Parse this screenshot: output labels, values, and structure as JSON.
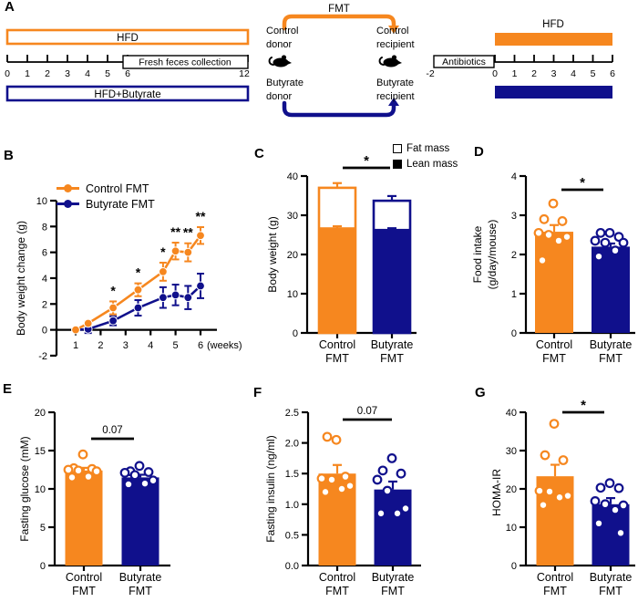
{
  "figure": {
    "panel_labels": {
      "A": "A",
      "B": "B",
      "C": "C",
      "D": "D",
      "E": "E",
      "F": "F",
      "G": "G"
    }
  },
  "colors": {
    "orange": "#F6871F",
    "navy": "#10108C",
    "black": "#000000"
  },
  "panel_a": {
    "left": {
      "hfd_label": "HFD",
      "butyrate_label": "HFD+Butyrate",
      "feces_label": "Fresh feces collection",
      "tick_labels": [
        "0",
        "1",
        "2",
        "3",
        "4",
        "5",
        "6"
      ],
      "end_label": "12"
    },
    "middle": {
      "fmt_label": "FMT",
      "control_donor": [
        "Control",
        "donor"
      ],
      "butyrate_donor": [
        "Butyrate",
        "donor"
      ],
      "control_recipient": [
        "Control",
        "recipient"
      ],
      "butyrate_recipient": [
        "Butyrate",
        "recipient"
      ]
    },
    "right": {
      "hfd_label": "HFD",
      "antibiotics_label": "Antibiotics",
      "pre_label": "-2",
      "tick_labels": [
        "0",
        "1",
        "2",
        "3",
        "4",
        "5",
        "6"
      ]
    }
  },
  "chart_data": [
    {
      "panel": "B",
      "type": "line",
      "ylabel": "Body weight change (g)",
      "xlabel": "(weeks)",
      "ylim": [
        -2,
        10
      ],
      "yticks": [
        "-2",
        "0",
        "2",
        "4",
        "6",
        "8",
        "10"
      ],
      "xticks": [
        "1",
        "2",
        "3",
        "4",
        "5",
        "6"
      ],
      "x": [
        1,
        1.5,
        2.5,
        3.5,
        4.5,
        5,
        5.5,
        6
      ],
      "series": [
        {
          "name": "Control FMT",
          "color": "orange",
          "values": [
            0,
            0.5,
            1.7,
            3.1,
            4.5,
            6.1,
            6.0,
            7.3
          ],
          "errors": [
            0.12,
            0.15,
            0.5,
            0.5,
            0.7,
            0.65,
            0.7,
            0.65
          ]
        },
        {
          "name": "Butyrate FMT",
          "color": "navy",
          "values": [
            0,
            0.05,
            0.7,
            1.7,
            2.5,
            2.7,
            2.5,
            3.4
          ],
          "errors": [
            0.12,
            0.3,
            0.35,
            0.6,
            0.8,
            0.8,
            0.9,
            0.95
          ]
        }
      ],
      "annotations": [
        {
          "x": 2.5,
          "label": "*"
        },
        {
          "x": 3.5,
          "label": "*"
        },
        {
          "x": 4.5,
          "label": "*"
        },
        {
          "x": 5,
          "label": "**"
        },
        {
          "x": 5.5,
          "label": "**"
        },
        {
          "x": 6,
          "label": "**"
        }
      ],
      "legend_position": "top-left"
    },
    {
      "panel": "C",
      "type": "stacked-bar",
      "ylabel_lines": [
        "Body weight (g)"
      ],
      "ylim": [
        0,
        40
      ],
      "yticks": [
        "0",
        "10",
        "20",
        "30",
        "40"
      ],
      "categories": [
        [
          "Control",
          "FMT"
        ],
        [
          "Butyrate",
          "FMT"
        ]
      ],
      "legend": [
        {
          "label": "Fat mass",
          "swatch": "open"
        },
        {
          "label": "Lean mass",
          "swatch": "filled"
        }
      ],
      "bars": [
        {
          "name": "Control FMT",
          "color": "orange",
          "lean": 26.7,
          "lean_err": 0.5,
          "total": 37.0,
          "total_err": 1.2
        },
        {
          "name": "Butyrate FMT",
          "color": "navy",
          "lean": 26.3,
          "lean_err": 0.4,
          "total": 33.7,
          "total_err": 1.2
        }
      ],
      "significance": "*"
    },
    {
      "panel": "D",
      "type": "bar-scatter",
      "ylabel_lines": [
        "Food intake",
        "(g/day/mouse)"
      ],
      "ylim": [
        0,
        4
      ],
      "yticks": [
        "0",
        "1",
        "2",
        "3",
        "4"
      ],
      "categories": [
        [
          "Control",
          "FMT"
        ],
        [
          "Butyrate",
          "FMT"
        ]
      ],
      "bars": [
        {
          "name": "Control FMT",
          "color": "orange",
          "mean": 2.58,
          "err": 0.17,
          "points": [
            3.3,
            2.9,
            2.85,
            2.55,
            2.5,
            2.45,
            2.35,
            1.85
          ]
        },
        {
          "name": "Butyrate FMT",
          "color": "navy",
          "mean": 2.2,
          "err": 0.08,
          "points": [
            2.55,
            2.55,
            2.45,
            2.35,
            2.3,
            2.3,
            2.1,
            1.95
          ]
        }
      ],
      "significance": "*"
    },
    {
      "panel": "E",
      "type": "bar-scatter",
      "ylabel_lines": [
        "Fasting glucose (mM)"
      ],
      "ylim": [
        0,
        20
      ],
      "yticks": [
        "0",
        "5",
        "10",
        "15",
        "20"
      ],
      "categories": [
        [
          "Control",
          "FMT"
        ],
        [
          "Butyrate",
          "FMT"
        ]
      ],
      "bars": [
        {
          "name": "Control FMT",
          "color": "orange",
          "mean": 12.4,
          "err": 0.35,
          "points": [
            14.5,
            12.7,
            12.6,
            12.5,
            12.4,
            12.3,
            11.6,
            11.5
          ]
        },
        {
          "name": "Butyrate FMT",
          "color": "navy",
          "mean": 11.5,
          "err": 0.35,
          "points": [
            13.0,
            12.3,
            12.2,
            12.1,
            11.8,
            11.1,
            10.7,
            10.6
          ]
        }
      ],
      "significance": "0.07"
    },
    {
      "panel": "F",
      "type": "bar-scatter",
      "ylabel_lines": [
        "Fasting insulin (ng/ml)"
      ],
      "ylim": [
        0,
        2.5
      ],
      "yticks": [
        "0.0",
        "0.5",
        "1.0",
        "1.5",
        "2.0",
        "2.5"
      ],
      "categories": [
        [
          "Control",
          "FMT"
        ],
        [
          "Butyrate",
          "FMT"
        ]
      ],
      "bars": [
        {
          "name": "Control FMT",
          "color": "orange",
          "mean": 1.5,
          "err": 0.14,
          "points": [
            2.05,
            2.1,
            1.45,
            1.42,
            1.4,
            1.3,
            1.25,
            1.2
          ]
        },
        {
          "name": "Butyrate FMT",
          "color": "navy",
          "mean": 1.24,
          "err": 0.13,
          "points": [
            1.75,
            1.55,
            1.5,
            1.4,
            1.22,
            0.93,
            0.85,
            0.85
          ]
        }
      ],
      "significance": "0.07"
    },
    {
      "panel": "G",
      "type": "bar-scatter",
      "ylabel_lines": [
        "HOMA-IR"
      ],
      "ylim": [
        0,
        40
      ],
      "yticks": [
        "0",
        "10",
        "20",
        "30",
        "40"
      ],
      "categories": [
        [
          "Control",
          "FMT"
        ],
        [
          "Butyrate",
          "FMT"
        ]
      ],
      "bars": [
        {
          "name": "Control FMT",
          "color": "orange",
          "mean": 23.3,
          "err": 3.0,
          "points": [
            37,
            28.8,
            27.5,
            19.5,
            19.3,
            18.2,
            17.8,
            15.8
          ]
        },
        {
          "name": "Butyrate FMT",
          "color": "navy",
          "mean": 16.0,
          "err": 1.6,
          "points": [
            21.5,
            20.3,
            20.2,
            16.8,
            16.0,
            15.7,
            14.5,
            11.0,
            8.5
          ]
        }
      ],
      "significance": "*"
    }
  ]
}
